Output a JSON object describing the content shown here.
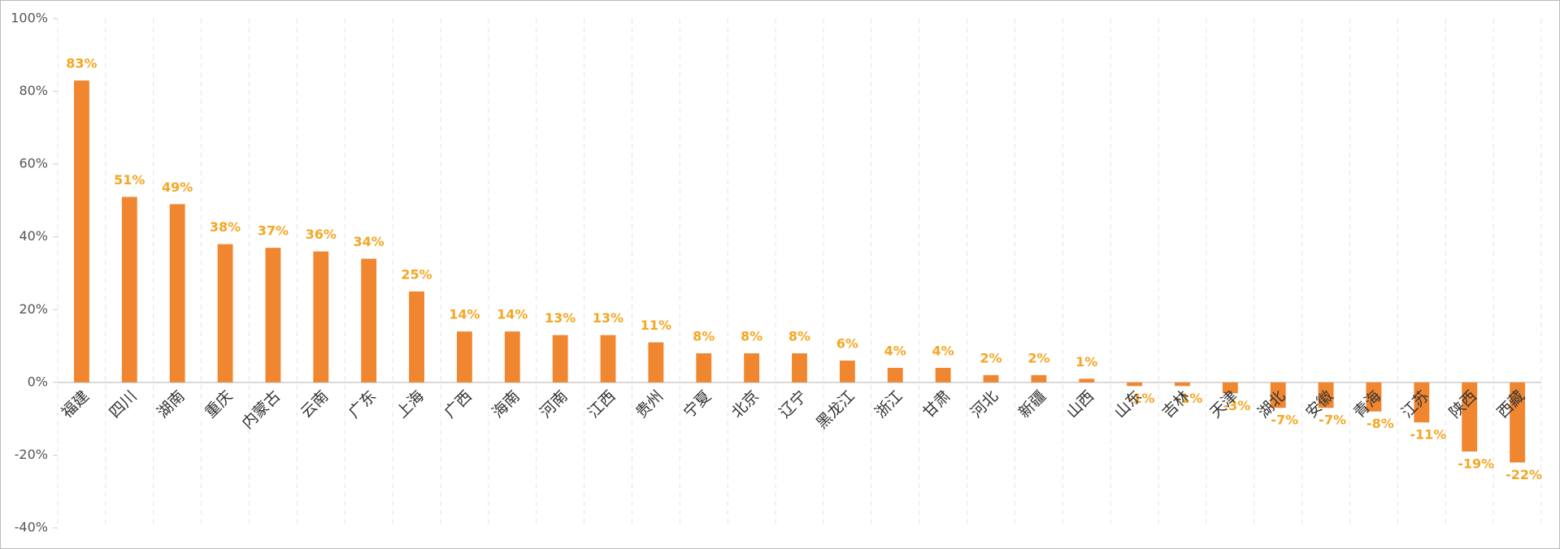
{
  "chart_data": {
    "type": "bar",
    "categories": [
      "福建",
      "四川",
      "湖南",
      "重庆",
      "内蒙古",
      "云南",
      "广东",
      "上海",
      "广西",
      "海南",
      "河南",
      "江西",
      "贵州",
      "宁夏",
      "北京",
      "辽宁",
      "黑龙江",
      "浙江",
      "甘肃",
      "河北",
      "新疆",
      "山西",
      "山东",
      "吉林",
      "天津",
      "湖北",
      "安徽",
      "青海",
      "江苏",
      "陕西",
      "西藏"
    ],
    "values": [
      83,
      51,
      49,
      38,
      37,
      36,
      34,
      25,
      14,
      14,
      13,
      13,
      11,
      8,
      8,
      8,
      6,
      4,
      4,
      2,
      2,
      1,
      -1,
      -1,
      -3,
      -7,
      -7,
      -8,
      -11,
      -19,
      -22
    ],
    "value_labels": [
      "83%",
      "51%",
      "49%",
      "38%",
      "37%",
      "36%",
      "34%",
      "25%",
      "14%",
      "14%",
      "13%",
      "13%",
      "11%",
      "8%",
      "8%",
      "8%",
      "6%",
      "4%",
      "4%",
      "2%",
      "2%",
      "1%",
      "-1%",
      "-1%",
      "-3%",
      "-7%",
      "-7%",
      "-8%",
      "-11%",
      "-19%",
      "-22%"
    ],
    "color": "#f0862f",
    "label_color": "#f5a623",
    "ylim": [
      -40,
      100
    ],
    "yticks": [
      {
        "value": -40,
        "label": "-40%"
      },
      {
        "value": -20,
        "label": "-20%"
      },
      {
        "value": 0,
        "label": "0%"
      },
      {
        "value": 20,
        "label": "20%"
      },
      {
        "value": 40,
        "label": "40%"
      },
      {
        "value": 60,
        "label": "60%"
      },
      {
        "value": 80,
        "label": "80%"
      },
      {
        "value": 100,
        "label": "100%"
      }
    ],
    "grid": true
  }
}
